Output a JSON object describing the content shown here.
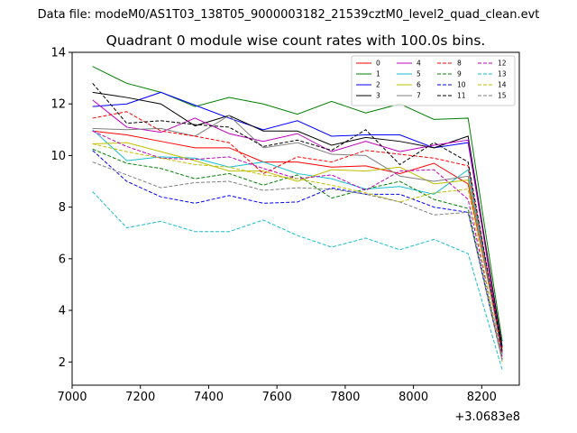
{
  "chart_data": {
    "type": "line",
    "suptitle": "Data file: modeM0/AS1T03_138T05_9000003182_21539cztM0_level2_quad_clean.evt",
    "title": "Quadrant 0 module wise count rates with 100.0s bins.",
    "xlabel": "",
    "ylabel": "",
    "x_offset_label": "+3.0683e8",
    "xlim": [
      7000,
      8310
    ],
    "ylim": [
      1.1,
      14.0
    ],
    "x_ticks": [
      7000,
      7200,
      7400,
      7600,
      7800,
      8000,
      8200
    ],
    "y_ticks": [
      2,
      4,
      6,
      8,
      10,
      12,
      14
    ],
    "legend_position": "top-right",
    "x": [
      7060,
      7160,
      7260,
      7360,
      7460,
      7560,
      7660,
      7760,
      7860,
      7960,
      8060,
      8160,
      8260
    ],
    "series": [
      {
        "name": "0",
        "color": "#ff0000",
        "dash": "solid",
        "values": [
          10.95,
          10.8,
          10.55,
          10.3,
          10.3,
          9.75,
          9.75,
          9.55,
          9.6,
          9.3,
          9.7,
          8.9,
          2.45
        ]
      },
      {
        "name": "1",
        "color": "#008000",
        "dash": "solid",
        "values": [
          13.45,
          12.8,
          12.45,
          11.9,
          12.25,
          12.0,
          11.6,
          12.1,
          11.65,
          12.0,
          11.4,
          11.45,
          2.8
        ]
      },
      {
        "name": "2",
        "color": "#0000ff",
        "dash": "solid",
        "values": [
          11.9,
          12.0,
          12.45,
          11.95,
          11.45,
          11.0,
          11.35,
          10.75,
          10.8,
          10.8,
          10.3,
          10.5,
          2.6
        ]
      },
      {
        "name": "3",
        "color": "#000000",
        "dash": "solid",
        "values": [
          12.45,
          12.25,
          12.0,
          11.15,
          11.55,
          10.95,
          10.95,
          10.4,
          10.7,
          10.55,
          10.3,
          10.75,
          2.55
        ]
      },
      {
        "name": "4",
        "color": "#bf00bf",
        "dash": "solid",
        "values": [
          12.15,
          11.1,
          10.9,
          11.45,
          10.85,
          10.55,
          10.85,
          10.15,
          10.55,
          10.15,
          10.4,
          10.6,
          2.35
        ]
      },
      {
        "name": "5",
        "color": "#17becf",
        "dash": "solid",
        "values": [
          11.0,
          9.8,
          9.95,
          9.9,
          9.55,
          9.75,
          9.3,
          9.1,
          8.7,
          8.8,
          8.5,
          9.45,
          2.3
        ]
      },
      {
        "name": "6",
        "color": "#bfbf00",
        "dash": "solid",
        "values": [
          10.45,
          10.5,
          10.15,
          9.8,
          9.4,
          9.4,
          9.0,
          9.45,
          9.4,
          9.55,
          8.9,
          9.05,
          2.4
        ]
      },
      {
        "name": "7",
        "color": "#7f7f7f",
        "dash": "solid",
        "values": [
          11.05,
          11.0,
          11.05,
          10.75,
          11.55,
          10.3,
          10.5,
          10.05,
          10.0,
          9.2,
          9.0,
          9.2,
          2.3
        ]
      },
      {
        "name": "8",
        "color": "#ff0000",
        "dash": "dashed",
        "values": [
          11.45,
          11.7,
          10.95,
          10.75,
          10.5,
          9.3,
          9.95,
          9.75,
          10.2,
          10.05,
          9.9,
          9.6,
          2.4
        ]
      },
      {
        "name": "9",
        "color": "#008000",
        "dash": "dashed",
        "values": [
          10.25,
          9.7,
          9.5,
          9.1,
          9.3,
          8.85,
          9.25,
          8.35,
          8.7,
          9.0,
          8.3,
          7.95,
          2.1
        ]
      },
      {
        "name": "10",
        "color": "#0000ff",
        "dash": "dashed",
        "values": [
          10.2,
          9.0,
          8.4,
          8.15,
          8.45,
          8.15,
          8.2,
          8.75,
          8.5,
          8.5,
          8.0,
          7.8,
          2.05
        ]
      },
      {
        "name": "11",
        "color": "#000000",
        "dash": "dashed",
        "values": [
          12.8,
          11.25,
          11.35,
          11.2,
          11.1,
          10.35,
          10.6,
          10.2,
          11.0,
          9.65,
          10.5,
          9.75,
          2.4
        ]
      },
      {
        "name": "12",
        "color": "#bf00bf",
        "dash": "dashed",
        "values": [
          10.95,
          10.35,
          9.9,
          9.85,
          9.95,
          9.5,
          9.1,
          9.25,
          8.65,
          9.4,
          9.45,
          8.3,
          2.2
        ]
      },
      {
        "name": "13",
        "color": "#17becf",
        "dash": "dashed",
        "values": [
          8.6,
          7.2,
          7.45,
          7.05,
          7.05,
          7.5,
          6.9,
          6.45,
          6.8,
          6.35,
          6.75,
          6.2,
          1.7
        ]
      },
      {
        "name": "14",
        "color": "#bfbf00",
        "dash": "dashed",
        "values": [
          10.45,
          10.15,
          9.9,
          9.65,
          9.55,
          9.25,
          9.1,
          8.85,
          8.55,
          8.2,
          8.55,
          8.7,
          2.0
        ]
      },
      {
        "name": "15",
        "color": "#7f7f7f",
        "dash": "dashed",
        "values": [
          9.75,
          9.25,
          8.75,
          8.95,
          9.0,
          8.65,
          8.75,
          8.7,
          8.5,
          8.2,
          7.7,
          7.8,
          2.05
        ]
      }
    ]
  }
}
